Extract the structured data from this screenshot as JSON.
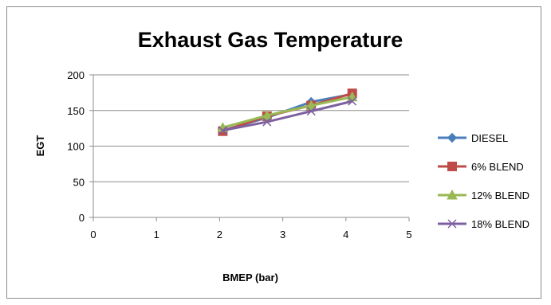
{
  "chart_data": {
    "type": "line",
    "title": "Exhaust Gas Temperature",
    "xlabel": "BMEP (bar)",
    "ylabel": "EGT",
    "xlim": [
      0,
      5
    ],
    "ylim": [
      0,
      200
    ],
    "xticks": [
      0,
      1,
      2,
      3,
      4,
      5
    ],
    "yticks": [
      0,
      50,
      100,
      150,
      200
    ],
    "grid": "horizontal",
    "legend": "right",
    "x": [
      2.05,
      2.75,
      3.45,
      4.1
    ],
    "series": [
      {
        "name": "DIESEL",
        "values": [
          122,
          140,
          162,
          173
        ],
        "color": "#4a7ebb",
        "marker": "diamond"
      },
      {
        "name": "6% BLEND",
        "values": [
          121,
          142,
          157,
          174
        ],
        "color": "#be4b48",
        "marker": "square"
      },
      {
        "name": "12% BLEND",
        "values": [
          126,
          143,
          157,
          169
        ],
        "color": "#98b954",
        "marker": "triangle"
      },
      {
        "name": "18% BLEND",
        "values": [
          122,
          134,
          149,
          163
        ],
        "color": "#7d60a0",
        "marker": "x"
      }
    ]
  }
}
